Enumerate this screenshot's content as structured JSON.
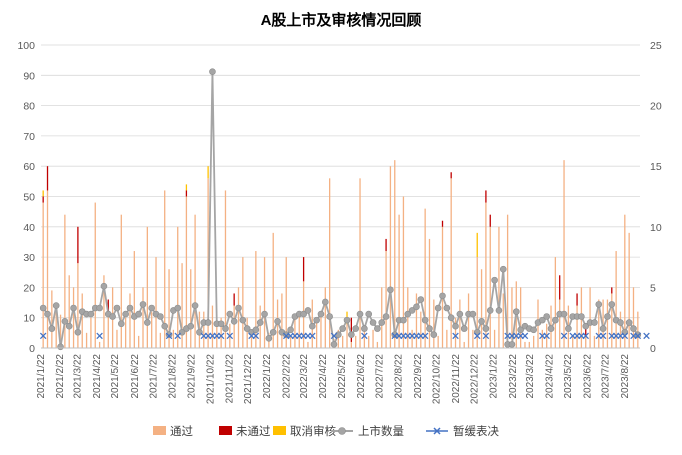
{
  "chart_data": {
    "type": "bar+line",
    "title": "A股上市及审核情况回顾",
    "y_left": {
      "min": 0,
      "max": 100,
      "step": 10,
      "ticks": [
        "0",
        "10",
        "20",
        "30",
        "40",
        "50",
        "60",
        "70",
        "80",
        "90",
        "100"
      ]
    },
    "y_right": {
      "min": 0,
      "max": 25,
      "step": 5,
      "ticks": [
        "0",
        "5",
        "10",
        "15",
        "20",
        "25"
      ]
    },
    "x_tick_labels": [
      "2021/1/22",
      "2021/2/22",
      "2021/3/22",
      "2021/4/22",
      "2021/5/22",
      "2021/6/22",
      "2021/7/22",
      "2021/8/22",
      "2021/9/22",
      "2021/10/22",
      "2021/11/22",
      "2021/12/22",
      "2022/1/22",
      "2022/2/22",
      "2022/3/22",
      "2022/4/22",
      "2022/5/22",
      "2022/6/22",
      "2022/7/22",
      "2022/8/22",
      "2022/9/22",
      "2022/10/22",
      "2022/11/22",
      "2022/12/22",
      "2023/1/22",
      "2023/2/22",
      "2023/3/22",
      "2023/4/22",
      "2023/5/22",
      "2023/6/22",
      "2023/7/22",
      "2023/8/22"
    ],
    "x_tick_weeks": [
      0,
      4.4,
      8.4,
      12.9,
      17.1,
      21.6,
      25.9,
      30.3,
      34.7,
      39,
      43.4,
      47.7,
      52.1,
      56.6,
      60.6,
      65,
      69.3,
      73.7,
      78,
      82.4,
      86.9,
      91.1,
      95.6,
      99.9,
      104.3,
      108.7,
      112.7,
      117.1,
      121.4,
      125.9,
      130.1,
      134.6
    ],
    "n_weeks": 138,
    "legend": [
      {
        "name": "通过",
        "color": "#F4B183",
        "kind": "bar"
      },
      {
        "name": "未通过",
        "color": "#C00000",
        "kind": "bar"
      },
      {
        "name": "取消审核",
        "color": "#FFC000",
        "kind": "bar"
      },
      {
        "name": "上市数量",
        "color": "#A5A5A5",
        "kind": "line"
      },
      {
        "name": "暂缓表决",
        "color": "#4472C4",
        "kind": "scatter"
      }
    ],
    "series": {
      "通过": [
        48,
        52,
        19,
        15,
        11,
        44,
        24,
        20,
        28,
        18,
        5,
        10,
        48,
        2,
        24,
        12,
        20,
        6,
        44,
        10,
        18,
        32,
        4,
        20,
        40,
        12,
        30,
        5,
        52,
        26,
        6,
        40,
        28,
        50,
        26,
        44,
        12,
        12,
        56,
        14,
        8,
        10,
        52,
        8,
        14,
        20,
        30,
        10,
        6,
        32,
        14,
        30,
        5,
        38,
        16,
        18,
        30,
        4,
        10,
        12,
        22,
        2,
        16,
        10,
        12,
        20,
        56,
        3,
        6,
        4,
        8,
        2,
        4,
        56,
        6,
        4,
        6,
        2,
        20,
        32,
        60,
        62,
        44,
        50,
        20,
        6,
        18,
        12,
        46,
        36,
        16,
        4,
        40,
        6,
        56,
        10,
        16,
        2,
        18,
        6,
        30,
        26,
        48,
        40,
        6,
        40,
        18,
        44,
        20,
        22,
        20,
        2,
        2,
        4,
        16,
        6,
        8,
        14,
        30,
        16,
        62,
        14,
        4,
        14,
        20,
        4,
        20,
        4,
        16,
        16,
        16,
        18,
        32,
        12,
        44,
        38,
        20,
        12
      ],
      "未通过": [
        2,
        8,
        0,
        0,
        0,
        0,
        0,
        0,
        12,
        0,
        0,
        0,
        0,
        0,
        0,
        4,
        0,
        0,
        0,
        0,
        0,
        0,
        0,
        0,
        0,
        0,
        0,
        0,
        0,
        0,
        0,
        0,
        0,
        2,
        0,
        0,
        0,
        0,
        0,
        0,
        0,
        0,
        0,
        0,
        4,
        0,
        0,
        0,
        0,
        0,
        0,
        0,
        0,
        0,
        0,
        0,
        0,
        0,
        0,
        0,
        8,
        0,
        0,
        0,
        0,
        0,
        0,
        0,
        0,
        0,
        0,
        8,
        0,
        0,
        0,
        0,
        0,
        0,
        0,
        4,
        0,
        0,
        0,
        0,
        0,
        0,
        0,
        0,
        0,
        0,
        0,
        0,
        2,
        0,
        2,
        0,
        0,
        0,
        0,
        0,
        0,
        0,
        4,
        4,
        0,
        0,
        0,
        0,
        0,
        0,
        0,
        0,
        0,
        0,
        0,
        0,
        0,
        0,
        0,
        8,
        0,
        0,
        0,
        4,
        0,
        4,
        0,
        0,
        0,
        0,
        0,
        2,
        0,
        0,
        0,
        0,
        0,
        0
      ],
      "取消审核": [
        2,
        0,
        0,
        0,
        0,
        0,
        0,
        0,
        0,
        0,
        0,
        0,
        0,
        0,
        0,
        0,
        0,
        0,
        0,
        0,
        0,
        0,
        0,
        0,
        0,
        0,
        0,
        0,
        0,
        0,
        0,
        0,
        0,
        2,
        0,
        0,
        0,
        0,
        4,
        0,
        0,
        0,
        0,
        0,
        0,
        0,
        0,
        0,
        0,
        0,
        0,
        0,
        0,
        0,
        0,
        0,
        0,
        0,
        0,
        0,
        0,
        0,
        0,
        0,
        0,
        0,
        0,
        0,
        0,
        0,
        4,
        0,
        0,
        0,
        0,
        0,
        0,
        0,
        0,
        0,
        0,
        0,
        0,
        0,
        0,
        0,
        0,
        0,
        0,
        0,
        0,
        0,
        0,
        0,
        0,
        0,
        0,
        0,
        0,
        0,
        8,
        0,
        0,
        0,
        0,
        0,
        0,
        0,
        0,
        0,
        0,
        0,
        0,
        0,
        0,
        0,
        0,
        0,
        0,
        0,
        0,
        0,
        0,
        0,
        0,
        0,
        0,
        0,
        0,
        0,
        0,
        0,
        0,
        0,
        0,
        0,
        0,
        0
      ],
      "上市数量": [
        3.3,
        2.8,
        1.6,
        3.5,
        0.1,
        2.2,
        1.8,
        3.3,
        1.3,
        3.0,
        2.8,
        2.8,
        3.3,
        3.3,
        5.1,
        2.8,
        2.6,
        3.3,
        2.0,
        2.8,
        3.3,
        2.6,
        2.8,
        3.6,
        2.1,
        3.3,
        2.8,
        2.6,
        1.8,
        1.1,
        3.1,
        3.3,
        1.3,
        1.6,
        1.8,
        3.5,
        1.3,
        2.1,
        2.1,
        22.8,
        2.0,
        2.0,
        1.6,
        2.8,
        2.2,
        3.3,
        2.3,
        1.6,
        1.3,
        1.5,
        2.1,
        2.8,
        0.8,
        1.3,
        2.2,
        1.3,
        1.1,
        1.5,
        2.6,
        2.8,
        2.8,
        3.1,
        1.8,
        2.3,
        2.8,
        3.8,
        2.6,
        0.3,
        1.1,
        1.6,
        2.3,
        1.1,
        1.6,
        2.8,
        1.6,
        2.8,
        2.1,
        1.6,
        2.1,
        2.6,
        4.8,
        1.1,
        2.3,
        2.3,
        2.8,
        3.1,
        3.4,
        4.0,
        2.3,
        1.6,
        1.1,
        3.3,
        4.3,
        3.3,
        2.5,
        1.8,
        2.8,
        1.6,
        2.8,
        2.8,
        1.3,
        2.2,
        1.6,
        3.1,
        5.6,
        3.1,
        6.5,
        0.3,
        0.3,
        3.0,
        1.5,
        1.8,
        1.6,
        1.5,
        2.1,
        2.3,
        2.6,
        1.6,
        2.3,
        2.8,
        2.8,
        1.6,
        2.6,
        2.6,
        2.6,
        1.8,
        2.1,
        2.1,
        3.6,
        1.6,
        2.6,
        3.6,
        2.3,
        2.1,
        1.3,
        2.1,
        1.6,
        1.1
      ],
      "暂缓表决": [
        1,
        0,
        0,
        0,
        0,
        0,
        0,
        0,
        0,
        0,
        0,
        0,
        0,
        1,
        0,
        0,
        0,
        0,
        0,
        0,
        0,
        0,
        0,
        0,
        0,
        0,
        0,
        0,
        0,
        1,
        0,
        1,
        0,
        0,
        0,
        0,
        0,
        1,
        1,
        1,
        1,
        1,
        0,
        1,
        0,
        0,
        0,
        0,
        1,
        1,
        0,
        0,
        0,
        0,
        0,
        0,
        1,
        1,
        1,
        1,
        1,
        1,
        1,
        0,
        0,
        0,
        0,
        1,
        0,
        0,
        0,
        0,
        0,
        0,
        1,
        0,
        0,
        0,
        0,
        0,
        0,
        1,
        1,
        1,
        1,
        1,
        1,
        1,
        1,
        0,
        0,
        0,
        0,
        0,
        0,
        1,
        0,
        0,
        0,
        0,
        1,
        0,
        1,
        0,
        0,
        0,
        0,
        1,
        1,
        1,
        1,
        1,
        0,
        0,
        0,
        1,
        1,
        0,
        0,
        0,
        1,
        0,
        1,
        1,
        1,
        1,
        0,
        0,
        1,
        1,
        0,
        1,
        1,
        1,
        1,
        0,
        1,
        1,
        0,
        1
      ]
    }
  }
}
